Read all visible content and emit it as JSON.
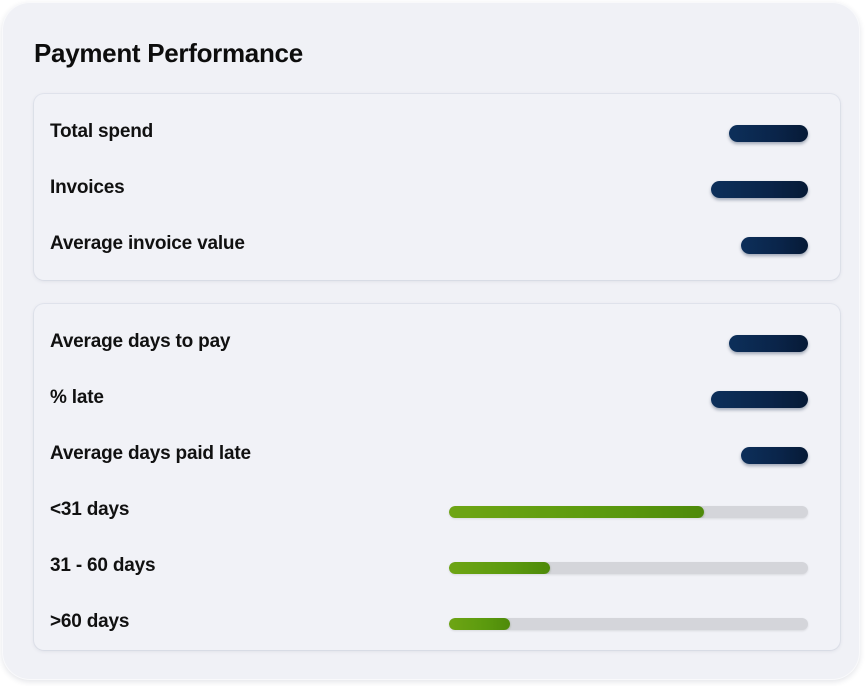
{
  "title": "Payment Performance",
  "colors": {
    "pill": "#0a2449",
    "bar_fill": "#5b9a0e",
    "bar_track": "#d4d5da",
    "card_background": "#f0f1f6"
  },
  "summary": {
    "rows": [
      {
        "label": "Total spend",
        "value_hidden": true
      },
      {
        "label": "Invoices",
        "value_hidden": true
      },
      {
        "label": "Average invoice value",
        "value_hidden": true
      }
    ]
  },
  "timeliness": {
    "rows": [
      {
        "label": "Average days to pay",
        "value_hidden": true
      },
      {
        "label": "% late",
        "value_hidden": true
      },
      {
        "label": "Average days paid late",
        "value_hidden": true
      }
    ],
    "distribution": [
      {
        "label": "<31 days",
        "fraction": 0.71
      },
      {
        "label": "31 - 60 days",
        "fraction": 0.28
      },
      {
        "label": ">60 days",
        "fraction": 0.17
      }
    ]
  }
}
